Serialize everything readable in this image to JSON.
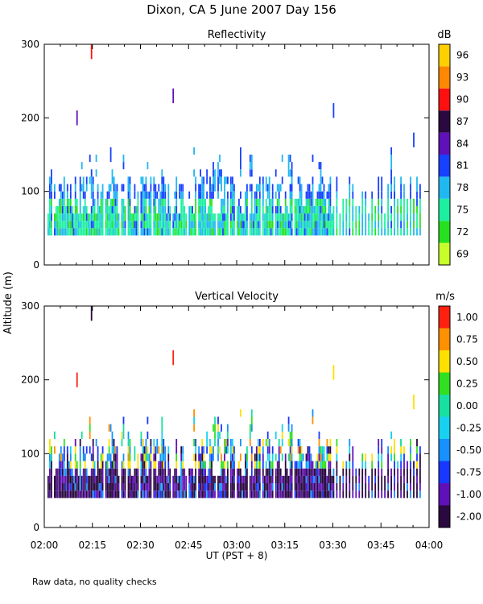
{
  "title": "Dixon, CA   5 June 2007   Day 156",
  "footnote": "Raw data, no quality checks",
  "shared_ylabel": "Altitude (m)",
  "chart_data": [
    {
      "type": "heatmap",
      "title": "Reflectivity",
      "xlabel": "",
      "ylabel": "Altitude (m)",
      "xlim_minutes_ut": [
        120,
        240
      ],
      "ylim": [
        0,
        300
      ],
      "yticks": [
        "0",
        "100",
        "200",
        "300"
      ],
      "colorbar": {
        "unit": "dB",
        "labels": [
          "69",
          "72",
          "75",
          "78",
          "81",
          "84",
          "87",
          "90",
          "93",
          "96"
        ],
        "colors": [
          "#c8ff2a",
          "#26e020",
          "#1cf0a0",
          "#20b8f0",
          "#1840ff",
          "#6010b8",
          "#2a0840",
          "#ff1010",
          "#ff8800",
          "#ffd000"
        ]
      },
      "observed_columns_minutes": [
        121,
        121.5,
        122,
        123,
        123.5,
        124,
        124.5,
        125,
        125.5,
        126,
        126.5,
        127,
        127.5,
        128,
        128.5,
        129,
        129.5,
        130,
        130.5,
        131,
        131.5,
        132,
        132.5,
        133,
        133.5,
        134,
        134.5,
        135,
        135.5,
        136,
        136.5,
        137,
        137.5,
        138,
        139,
        139.5,
        140,
        140.5,
        141,
        141.5,
        142,
        142.5,
        143,
        144,
        144.5,
        145,
        146,
        146.5,
        147,
        147.5,
        148,
        148.5,
        149,
        150,
        150.5,
        151,
        151.5,
        152,
        152.5,
        153,
        154,
        154.5,
        155,
        155.5,
        156,
        156.5,
        157,
        157.5,
        158,
        158.5,
        159,
        160,
        160.5,
        161,
        161.5,
        162,
        162.5,
        163,
        163.5,
        164,
        165,
        165.5,
        166,
        166.5,
        167,
        168,
        168.5,
        169,
        169.5,
        170,
        170.5,
        171,
        171.5,
        172,
        172.5,
        173,
        174,
        174.5,
        175,
        175.5,
        176,
        176.5,
        177,
        178,
        178.5,
        179,
        180,
        180.5,
        181,
        181.5,
        182,
        182.5,
        183,
        184,
        184.5,
        185,
        185.5,
        186,
        186.5,
        187,
        188,
        188.5,
        189,
        189.5,
        190,
        190.5,
        191,
        192,
        192.5,
        193,
        193.5,
        194,
        194.5,
        195,
        195.5,
        196,
        196.5,
        197,
        198,
        198.5,
        199,
        199.5,
        200,
        200.5,
        201,
        201.5,
        202,
        202.5,
        203,
        203.5,
        204,
        204.5,
        205,
        205.5,
        206,
        206.5,
        207,
        207.5,
        208,
        208.5,
        209,
        209.5,
        210,
        211,
        212,
        213,
        214,
        215,
        216,
        217,
        218,
        219,
        220,
        221,
        222,
        223,
        224,
        225,
        226,
        227,
        228,
        229,
        230,
        231,
        232,
        233,
        234,
        235,
        236,
        237
      ],
      "notable_echoes": [
        {
          "time_min": 134.5,
          "altitude_m": 290,
          "value": 90
        },
        {
          "time_min": 130,
          "altitude_m": 200,
          "value": 85
        },
        {
          "time_min": 160,
          "altitude_m": 230,
          "value": 85
        },
        {
          "time_min": 210,
          "altitude_m": 210,
          "value": 82
        },
        {
          "time_min": 235,
          "altitude_m": 170,
          "value": 81
        }
      ]
    },
    {
      "type": "heatmap",
      "title": "Vertical Velocity",
      "xlabel": "UT  (PST + 8)",
      "ylabel": "Altitude (m)",
      "xlim_minutes_ut": [
        120,
        240
      ],
      "xticks": [
        "02:00",
        "02:15",
        "02:30",
        "02:45",
        "03:00",
        "03:15",
        "03:30",
        "03:45",
        "04:00"
      ],
      "ylim": [
        0,
        300
      ],
      "yticks": [
        "0",
        "100",
        "200",
        "300"
      ],
      "colorbar": {
        "unit": "m/s",
        "labels": [
          "-2.00",
          "-1.00",
          "-0.75",
          "-0.50",
          "-0.25",
          "0.00",
          "0.25",
          "0.50",
          "0.75",
          "1.00"
        ],
        "colors": [
          "#2a0840",
          "#6010b8",
          "#1838ff",
          "#1890ff",
          "#18d0f0",
          "#18e0a0",
          "#30e020",
          "#ffe000",
          "#ff9000",
          "#ff2010"
        ]
      },
      "notable_echoes": [
        {
          "time_min": 134.5,
          "altitude_m": 290,
          "value": -1.5
        },
        {
          "time_min": 130,
          "altitude_m": 200,
          "value": 1.0
        },
        {
          "time_min": 160,
          "altitude_m": 230,
          "value": 1.0
        },
        {
          "time_min": 210,
          "altitude_m": 210,
          "value": 0.6
        },
        {
          "time_min": 235,
          "altitude_m": 170,
          "value": 0.5
        }
      ]
    }
  ]
}
